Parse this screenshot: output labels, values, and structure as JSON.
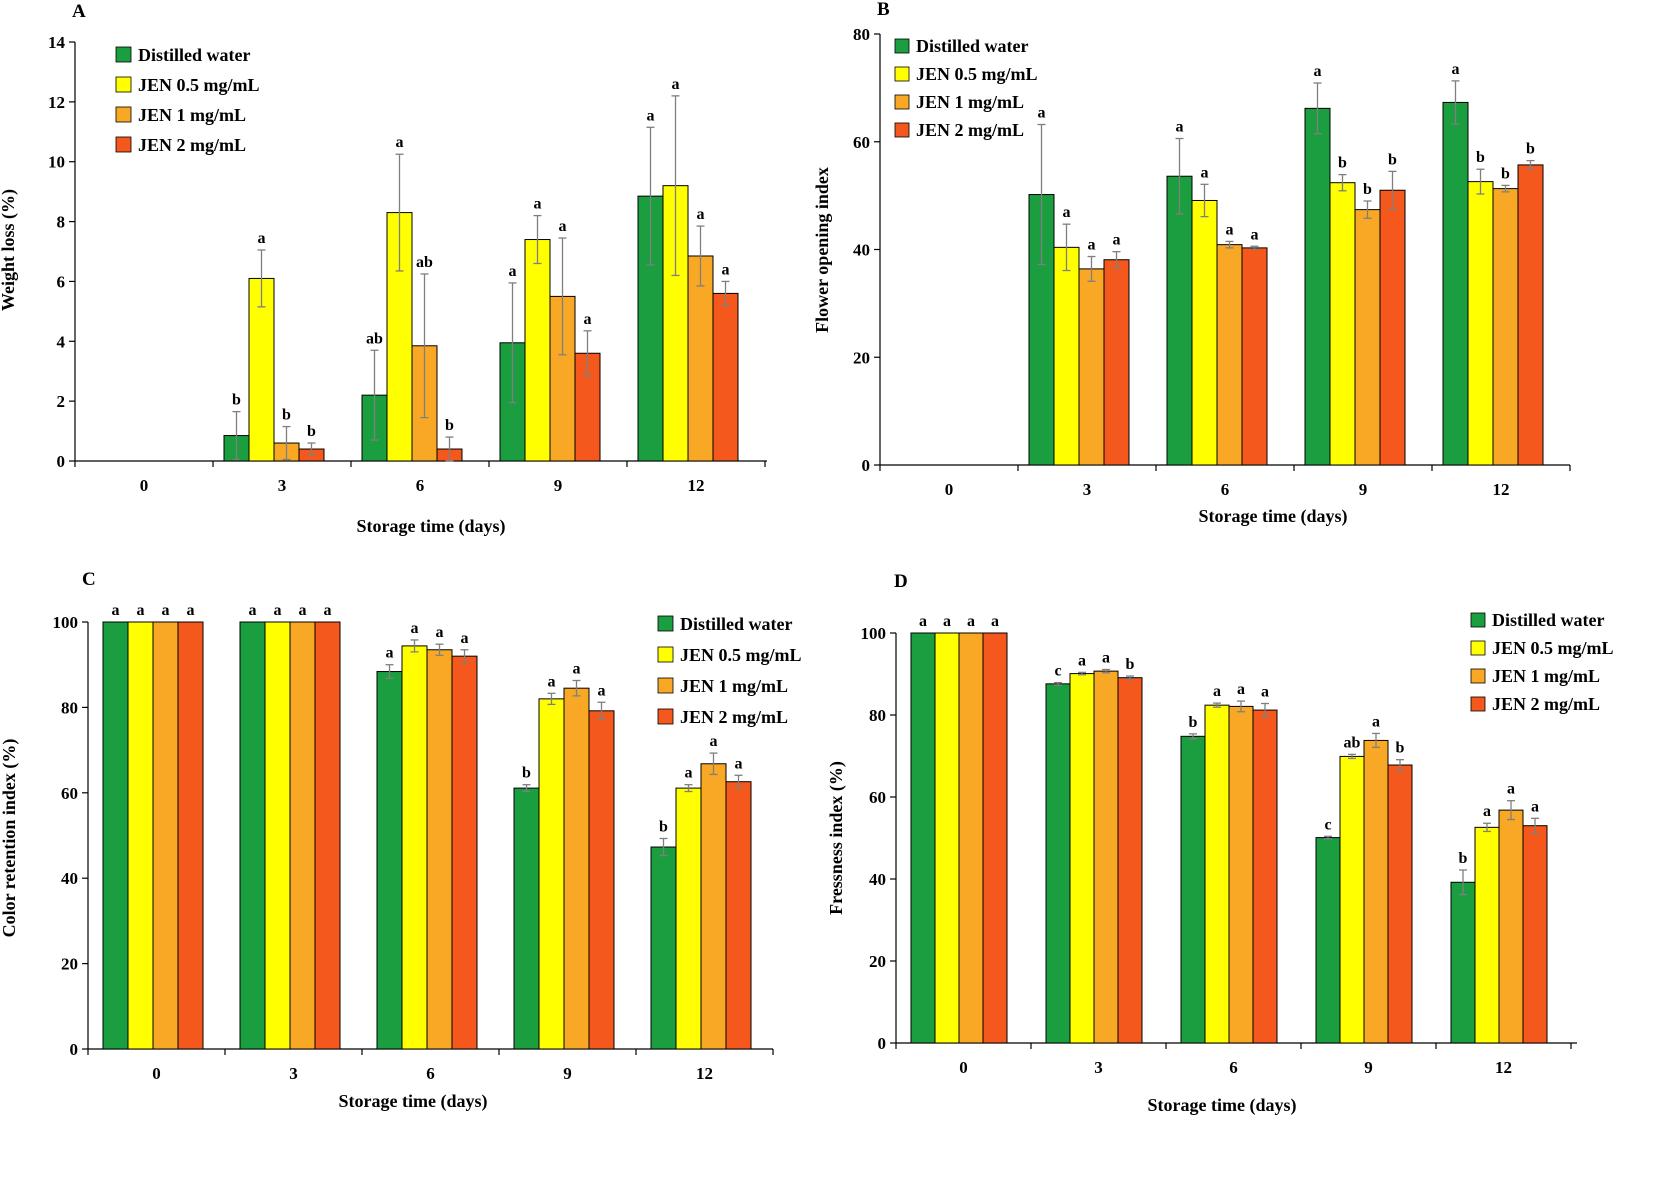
{
  "colors": {
    "Distilled water": "#1a9e3f",
    "JEN 0.5 mg/mL": "#ffff00",
    "JEN 1 mg/mL": "#f9a825",
    "JEN 2 mg/mL": "#f4581c",
    "error_bar": "#7f7f7f"
  },
  "chart_data": [
    {
      "panel": "A",
      "type": "bar",
      "categories": [
        "0",
        "3",
        "6",
        "9",
        "12"
      ],
      "xlabel": "Storage time (days)",
      "ylabel": "Weight loss (%)",
      "ylim": [
        0,
        14
      ],
      "yticks": [
        0,
        2,
        4,
        6,
        8,
        10,
        12,
        14
      ],
      "legend": "top-left",
      "series": [
        {
          "name": "Distilled water",
          "values": [
            0,
            0.85,
            2.2,
            3.95,
            8.85
          ],
          "errors": [
            0,
            0.8,
            1.5,
            2.0,
            2.3
          ],
          "letters": [
            "",
            "b",
            "ab",
            "a",
            "a"
          ]
        },
        {
          "name": "JEN 0.5 mg/mL",
          "values": [
            0,
            6.1,
            8.3,
            7.4,
            9.2
          ],
          "errors": [
            0,
            0.95,
            1.95,
            0.8,
            3.0
          ],
          "letters": [
            "",
            "a",
            "a",
            "a",
            "a"
          ]
        },
        {
          "name": "JEN 1 mg/mL",
          "values": [
            0,
            0.6,
            3.85,
            5.5,
            6.85
          ],
          "errors": [
            0,
            0.55,
            2.4,
            1.95,
            1.0
          ],
          "letters": [
            "",
            "b",
            "ab",
            "a",
            "a"
          ]
        },
        {
          "name": "JEN 2 mg/mL",
          "values": [
            0,
            0.4,
            0.4,
            3.6,
            5.6
          ],
          "errors": [
            0,
            0.2,
            0.4,
            0.75,
            0.4
          ],
          "letters": [
            "",
            "b",
            "b",
            "a",
            "a"
          ]
        }
      ]
    },
    {
      "panel": "B",
      "type": "bar",
      "categories": [
        "0",
        "3",
        "6",
        "9",
        "12"
      ],
      "xlabel": "Storage time (days)",
      "ylabel": "Flower opening index",
      "ylim": [
        0,
        80
      ],
      "yticks": [
        0,
        20,
        40,
        60,
        80
      ],
      "legend": "top-left",
      "series": [
        {
          "name": "Distilled water",
          "values": [
            0,
            50.2,
            53.6,
            66.2,
            67.3
          ],
          "errors": [
            0,
            13.0,
            7.0,
            4.7,
            4.0
          ],
          "letters": [
            "",
            "a",
            "a",
            "a",
            "a"
          ]
        },
        {
          "name": "JEN 0.5 mg/mL",
          "values": [
            0,
            40.4,
            49.1,
            52.4,
            52.6
          ],
          "errors": [
            0,
            4.3,
            3.0,
            1.5,
            2.3
          ],
          "letters": [
            "",
            "a",
            "a",
            "b",
            "b"
          ]
        },
        {
          "name": "JEN 1 mg/mL",
          "values": [
            0,
            36.4,
            40.9,
            47.4,
            51.3
          ],
          "errors": [
            0,
            2.3,
            0.6,
            1.6,
            0.6
          ],
          "letters": [
            "",
            "a",
            "a",
            "b",
            "b"
          ]
        },
        {
          "name": "JEN 2 mg/mL",
          "values": [
            0,
            38.1,
            40.3,
            51.0,
            55.7
          ],
          "errors": [
            0,
            1.5,
            0.3,
            3.5,
            0.8
          ],
          "letters": [
            "",
            "a",
            "a",
            "b",
            "b"
          ]
        }
      ]
    },
    {
      "panel": "C",
      "type": "bar",
      "categories": [
        "0",
        "3",
        "6",
        "9",
        "12"
      ],
      "xlabel": "Storage time (days)",
      "ylabel": "Color retention index (%)",
      "ylim": [
        0,
        100
      ],
      "yticks": [
        0,
        20,
        40,
        60,
        80,
        100
      ],
      "legend": "top-right",
      "series": [
        {
          "name": "Distilled water",
          "values": [
            100,
            100,
            88.4,
            61.1,
            47.3
          ],
          "errors": [
            0,
            0,
            1.6,
            0.8,
            2.0
          ],
          "letters": [
            "a",
            "a",
            "a",
            "b",
            "b"
          ]
        },
        {
          "name": "JEN 0.5 mg/mL",
          "values": [
            100,
            100,
            94.4,
            82.0,
            61.1
          ],
          "errors": [
            0,
            0,
            1.4,
            1.3,
            0.8
          ],
          "letters": [
            "a",
            "a",
            "a",
            "a",
            "a"
          ]
        },
        {
          "name": "JEN 1 mg/mL",
          "values": [
            100,
            100,
            93.5,
            84.5,
            66.8
          ],
          "errors": [
            0,
            0,
            1.3,
            1.8,
            2.5
          ],
          "letters": [
            "a",
            "a",
            "a",
            "a",
            "a"
          ]
        },
        {
          "name": "JEN 2 mg/mL",
          "values": [
            100,
            100,
            92.0,
            79.2,
            62.6
          ],
          "errors": [
            0,
            0,
            1.5,
            2.0,
            1.5
          ],
          "letters": [
            "a",
            "a",
            "a",
            "a",
            "a"
          ]
        }
      ]
    },
    {
      "panel": "D",
      "type": "bar",
      "categories": [
        "0",
        "3",
        "6",
        "9",
        "12"
      ],
      "xlabel": "Storage time (days)",
      "ylabel": "Fressness index (%)",
      "ylim": [
        0,
        100
      ],
      "yticks": [
        0,
        20,
        40,
        60,
        80,
        100
      ],
      "legend": "top-right",
      "series": [
        {
          "name": "Distilled water",
          "values": [
            100,
            87.6,
            74.8,
            50.1,
            39.2
          ],
          "errors": [
            0,
            0.3,
            0.6,
            0.3,
            3.0
          ],
          "letters": [
            "a",
            "c",
            "b",
            "c",
            "b"
          ]
        },
        {
          "name": "JEN 0.5 mg/mL",
          "values": [
            100,
            90.1,
            82.4,
            69.9,
            52.6
          ],
          "errors": [
            0,
            0.3,
            0.5,
            0.5,
            1.0
          ],
          "letters": [
            "a",
            "a",
            "a",
            "ab",
            "a"
          ]
        },
        {
          "name": "JEN 1 mg/mL",
          "values": [
            100,
            90.7,
            82.1,
            73.8,
            56.8
          ],
          "errors": [
            0,
            0.4,
            1.3,
            1.7,
            2.3
          ],
          "letters": [
            "a",
            "a",
            "a",
            "a",
            "a"
          ]
        },
        {
          "name": "JEN 2 mg/mL",
          "values": [
            100,
            89.1,
            81.2,
            67.8,
            53.0
          ],
          "errors": [
            0,
            0.4,
            1.6,
            1.3,
            1.8
          ],
          "letters": [
            "a",
            "b",
            "a",
            "b",
            "a"
          ]
        }
      ]
    }
  ]
}
